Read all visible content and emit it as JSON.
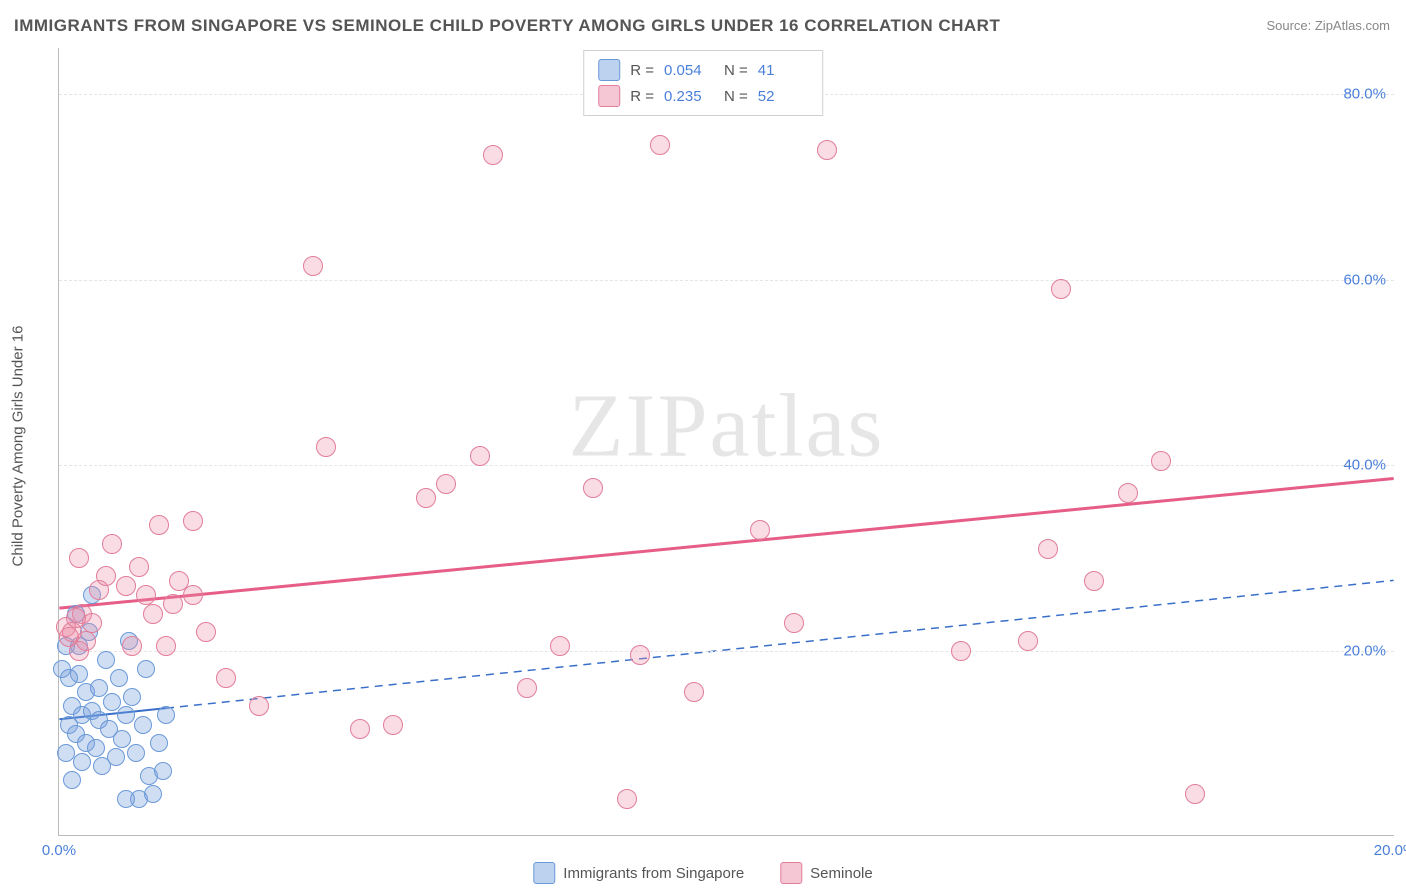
{
  "title": "IMMIGRANTS FROM SINGAPORE VS SEMINOLE CHILD POVERTY AMONG GIRLS UNDER 16 CORRELATION CHART",
  "source": "Source: ZipAtlas.com",
  "ylabel": "Child Poverty Among Girls Under 16",
  "watermark": "ZIPatlas",
  "xlim": [
    0,
    20
  ],
  "ylim": [
    0,
    85
  ],
  "xticks": [
    {
      "v": 0,
      "label": "0.0%"
    },
    {
      "v": 20,
      "label": "20.0%"
    }
  ],
  "yticks": [
    {
      "v": 20,
      "label": "20.0%"
    },
    {
      "v": 40,
      "label": "40.0%"
    },
    {
      "v": 60,
      "label": "60.0%"
    },
    {
      "v": 80,
      "label": "80.0%"
    }
  ],
  "grid_color": "#e5e5e5",
  "background_color": "#ffffff",
  "series": [
    {
      "name": "Immigrants from Singapore",
      "color_fill": "rgba(120,160,220,0.35)",
      "color_stroke": "#6a99d8",
      "swatch_fill": "#bcd2ef",
      "swatch_stroke": "#6a99d8",
      "point_radius": 9,
      "R": "0.054",
      "N": "41",
      "trend": {
        "x1": 0,
        "y1": 12.5,
        "x2": 20,
        "y2": 27.5,
        "solid_until_x": 1.6,
        "color": "#3a6fc9",
        "width": 2
      },
      "points": [
        [
          0.05,
          18
        ],
        [
          0.1,
          20.5
        ],
        [
          0.1,
          9
        ],
        [
          0.15,
          12
        ],
        [
          0.2,
          14
        ],
        [
          0.2,
          6
        ],
        [
          0.25,
          24
        ],
        [
          0.25,
          11
        ],
        [
          0.3,
          17.5
        ],
        [
          0.35,
          13
        ],
        [
          0.35,
          8
        ],
        [
          0.4,
          15.5
        ],
        [
          0.4,
          10
        ],
        [
          0.45,
          22
        ],
        [
          0.5,
          13.5
        ],
        [
          0.5,
          26
        ],
        [
          0.55,
          9.5
        ],
        [
          0.6,
          12.5
        ],
        [
          0.6,
          16
        ],
        [
          0.65,
          7.5
        ],
        [
          0.7,
          19
        ],
        [
          0.75,
          11.5
        ],
        [
          0.8,
          14.5
        ],
        [
          0.85,
          8.5
        ],
        [
          0.9,
          17
        ],
        [
          0.95,
          10.5
        ],
        [
          1.0,
          13
        ],
        [
          1.05,
          21
        ],
        [
          1.1,
          15
        ],
        [
          1.15,
          9
        ],
        [
          1.2,
          4
        ],
        [
          1.25,
          12
        ],
        [
          1.3,
          18
        ],
        [
          1.35,
          6.5
        ],
        [
          1.4,
          4.5
        ],
        [
          1.5,
          10
        ],
        [
          1.55,
          7
        ],
        [
          1.6,
          13
        ],
        [
          1.0,
          4
        ],
        [
          0.3,
          20.5
        ],
        [
          0.15,
          17
        ]
      ]
    },
    {
      "name": "Seminole",
      "color_fill": "rgba(235,140,165,0.30)",
      "color_stroke": "#e27d9a",
      "swatch_fill": "#f5c6d4",
      "swatch_stroke": "#e27d9a",
      "point_radius": 10,
      "R": "0.235",
      "N": "52",
      "trend": {
        "x1": 0,
        "y1": 24.5,
        "x2": 20,
        "y2": 38.5,
        "solid_until_x": 20,
        "color": "#e65d88",
        "width": 3
      },
      "points": [
        [
          0.1,
          22.5
        ],
        [
          0.15,
          21.5
        ],
        [
          0.3,
          20
        ],
        [
          0.3,
          30
        ],
        [
          0.35,
          24
        ],
        [
          0.4,
          21
        ],
        [
          0.6,
          26.5
        ],
        [
          0.8,
          31.5
        ],
        [
          1.0,
          27
        ],
        [
          1.1,
          20.5
        ],
        [
          1.2,
          29
        ],
        [
          1.3,
          26
        ],
        [
          1.5,
          33.5
        ],
        [
          1.6,
          20.5
        ],
        [
          1.7,
          25
        ],
        [
          1.8,
          27.5
        ],
        [
          2.0,
          34
        ],
        [
          2.2,
          22
        ],
        [
          2.5,
          17
        ],
        [
          3.8,
          61.5
        ],
        [
          4.5,
          11.5
        ],
        [
          5.0,
          12
        ],
        [
          5.5,
          36.5
        ],
        [
          5.8,
          38
        ],
        [
          6.3,
          41
        ],
        [
          6.5,
          73.5
        ],
        [
          7.0,
          16
        ],
        [
          7.5,
          20.5
        ],
        [
          8.0,
          37.5
        ],
        [
          8.5,
          4
        ],
        [
          8.7,
          19.5
        ],
        [
          9.0,
          74.5
        ],
        [
          9.5,
          15.5
        ],
        [
          10.5,
          33
        ],
        [
          11.0,
          23
        ],
        [
          11.5,
          74
        ],
        [
          13.5,
          20
        ],
        [
          14.5,
          21
        ],
        [
          14.8,
          31
        ],
        [
          15.0,
          59
        ],
        [
          15.5,
          27.5
        ],
        [
          16.0,
          37
        ],
        [
          16.5,
          40.5
        ],
        [
          17.0,
          4.5
        ],
        [
          0.5,
          23
        ],
        [
          0.7,
          28
        ],
        [
          1.4,
          24
        ],
        [
          2.0,
          26
        ],
        [
          3.0,
          14
        ],
        [
          4.0,
          42
        ],
        [
          0.2,
          22
        ],
        [
          0.25,
          23.5
        ]
      ]
    }
  ],
  "legend_top": {
    "R_label": "R =",
    "N_label": "N ="
  },
  "legend_bottom": [
    {
      "swatch_fill": "#bcd2ef",
      "swatch_stroke": "#6a99d8",
      "label": "Immigrants from Singapore"
    },
    {
      "swatch_fill": "#f5c6d4",
      "swatch_stroke": "#e27d9a",
      "label": "Seminole"
    }
  ]
}
